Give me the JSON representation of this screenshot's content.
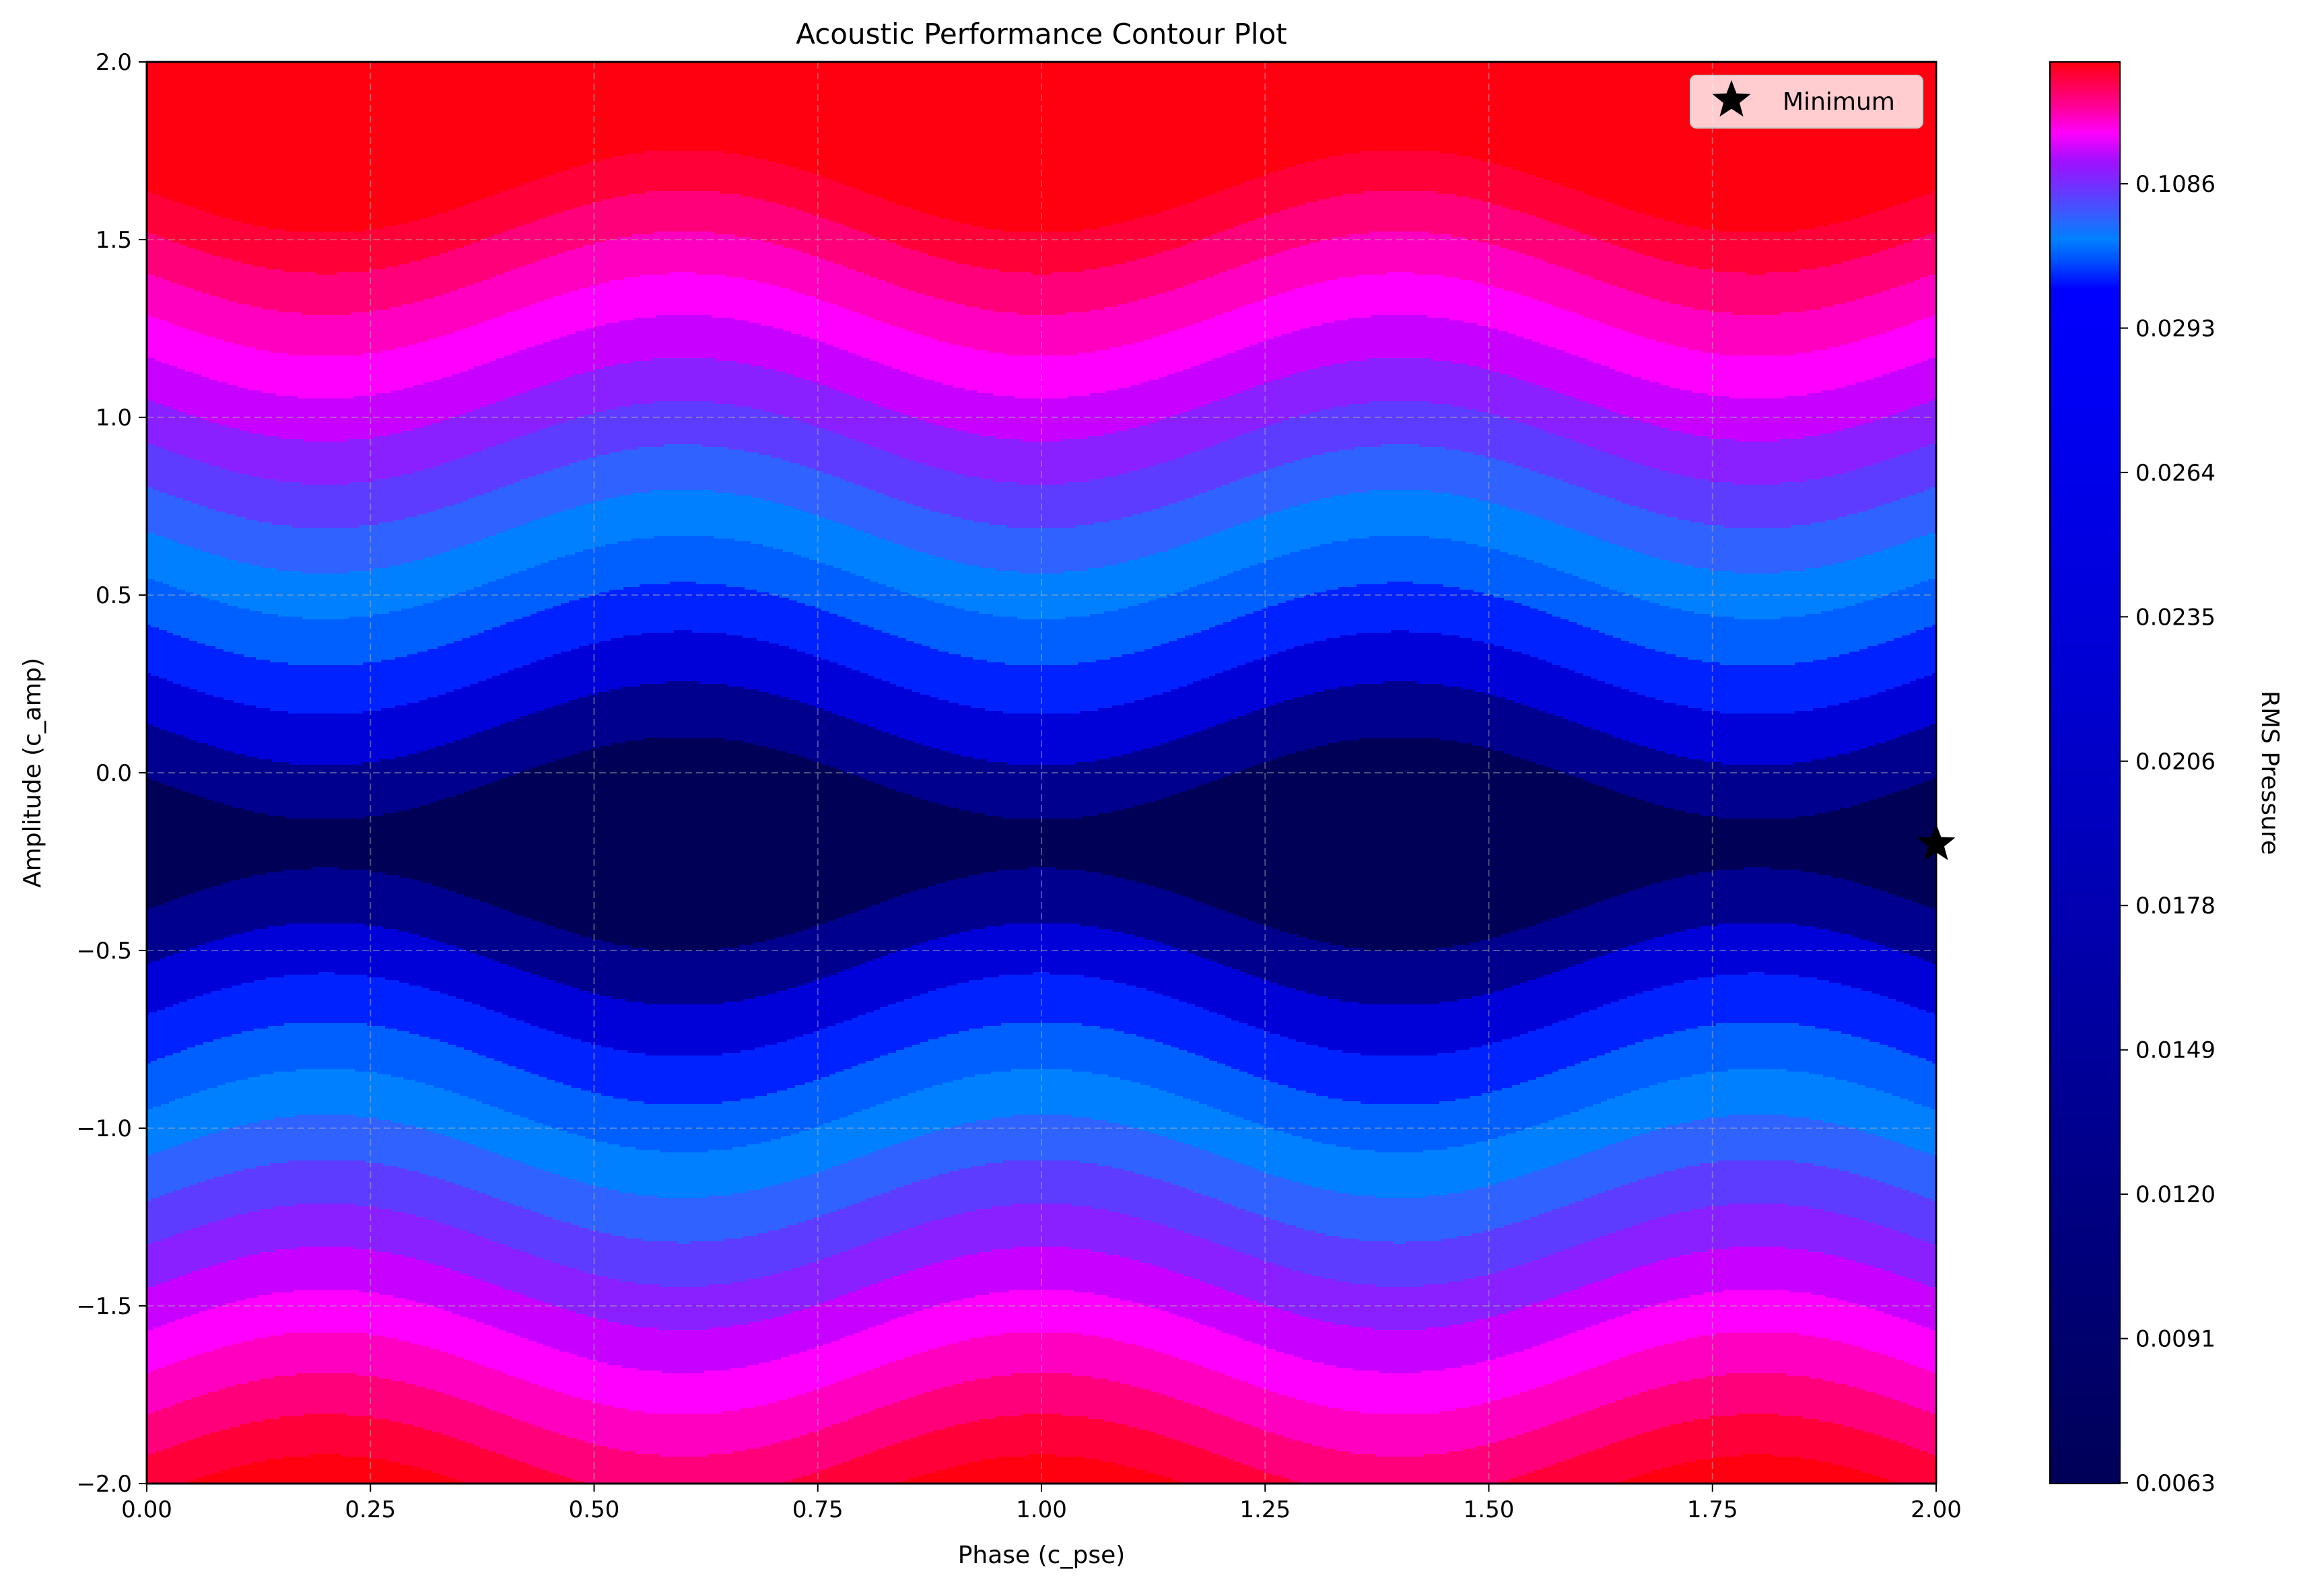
{
  "chart_data": {
    "type": "contour",
    "title": "Acoustic Performance Contour Plot",
    "xlabel": "Phase (c_pse)",
    "ylabel": "Amplitude (c_amp)",
    "xlim": [
      0,
      2
    ],
    "ylim": [
      -2,
      2
    ],
    "x_ticks": [
      "0.00",
      "0.25",
      "0.50",
      "0.75",
      "1.00",
      "1.25",
      "1.50",
      "1.75",
      "2.00"
    ],
    "y_ticks": [
      "2.0",
      "1.5",
      "1.0",
      "0.5",
      "0.0",
      "−0.5",
      "−1.0",
      "−1.5",
      "−2.0"
    ],
    "grid": true,
    "legend": {
      "position": "top-right",
      "entries": [
        {
          "label": "Minimum",
          "marker": "star",
          "color": "#000000"
        }
      ]
    },
    "minimum_marker": {
      "x": 2.0,
      "y": -0.2
    },
    "field": {
      "description_from_visual": "RMS pressure lowest near amplitude -0.2, rising toward amplitude ±2, with bands undulating with phase",
      "valley_amplitude": -0.2,
      "wave_period_phase": 0.8
    },
    "colorbar": {
      "label": "RMS Pressure",
      "ticks": [
        "0.0063",
        "0.0091",
        "0.0120",
        "0.0149",
        "0.0178",
        "0.0206",
        "0.0235",
        "0.0264",
        "0.0293",
        "0.1086"
      ],
      "colors": [
        "#000057",
        "#00008f",
        "#0000d8",
        "#0022ff",
        "#0060ff",
        "#0080ff",
        "#2f62ff",
        "#5e3cff",
        "#8a1fff",
        "#c800ff",
        "#ff00ff",
        "#ff00c0",
        "#ff007a",
        "#ff0038",
        "#ff0010"
      ]
    }
  }
}
